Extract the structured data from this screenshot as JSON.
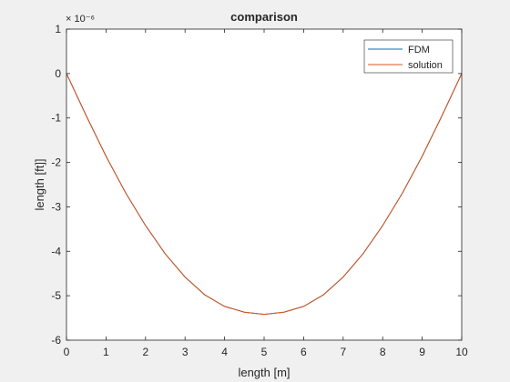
{
  "chart_data": {
    "type": "line",
    "title": "comparison",
    "xlabel": "length [m]",
    "ylabel": "length [ft]]",
    "exponent_label": "× 10⁻⁶",
    "xlim": [
      0,
      10
    ],
    "ylim": [
      -6,
      1
    ],
    "xticks": [
      "0",
      "1",
      "2",
      "3",
      "4",
      "5",
      "6",
      "7",
      "8",
      "9",
      "10"
    ],
    "yticks": [
      "1",
      "0",
      "-1",
      "-2",
      "-3",
      "-4",
      "-5",
      "-6"
    ],
    "ytick_values": [
      1,
      0,
      -1,
      -2,
      -3,
      -4,
      -5,
      -6
    ],
    "grid": false,
    "legend_position": "top-right",
    "series": [
      {
        "name": "FDM",
        "color": "#0072bd",
        "x": [
          0,
          0.5,
          1,
          1.5,
          2,
          2.5,
          3,
          3.5,
          4,
          4.5,
          5,
          5.5,
          6,
          6.5,
          7,
          7.5,
          8,
          8.5,
          9,
          9.5,
          10
        ],
        "y": [
          0,
          -0.95,
          -1.86,
          -2.69,
          -3.42,
          -4.06,
          -4.58,
          -4.98,
          -5.24,
          -5.37,
          -5.42,
          -5.37,
          -5.24,
          -4.98,
          -4.58,
          -4.06,
          -3.42,
          -2.69,
          -1.86,
          -0.95,
          0
        ]
      },
      {
        "name": "solution",
        "color": "#d95319",
        "x": [
          0,
          0.5,
          1,
          1.5,
          2,
          2.5,
          3,
          3.5,
          4,
          4.5,
          5,
          5.5,
          6,
          6.5,
          7,
          7.5,
          8,
          8.5,
          9,
          9.5,
          10
        ],
        "y": [
          0,
          -0.95,
          -1.86,
          -2.69,
          -3.42,
          -4.06,
          -4.58,
          -4.98,
          -5.24,
          -5.37,
          -5.42,
          -5.37,
          -5.24,
          -4.98,
          -4.58,
          -4.06,
          -3.42,
          -2.69,
          -1.86,
          -0.95,
          0
        ]
      }
    ]
  }
}
